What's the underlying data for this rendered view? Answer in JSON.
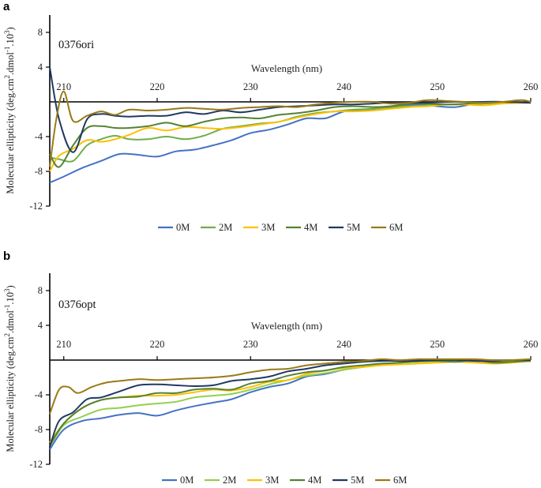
{
  "chart_data": [
    {
      "type": "line",
      "panel_label": "a",
      "sample_label": "0376ori",
      "xlabel": "Wavelength (nm)",
      "ylabel": "Molecular ellipticity (deg.cm",
      "ylabel_sup1": "2",
      "ylabel_mid": ".dmol",
      "ylabel_sup2": "-1",
      "ylabel_mid2": ".10",
      "ylabel_sup3": "3",
      "ylabel_end": ")",
      "xlim": [
        208.5,
        260
      ],
      "ylim": [
        -12,
        10
      ],
      "xticks": [
        210,
        220,
        230,
        240,
        250,
        260
      ],
      "xtick_labels": [
        "210",
        "220",
        "230",
        "240",
        "250",
        "260"
      ],
      "yticks": [
        8,
        4,
        -4,
        -8,
        -12
      ],
      "ytick_labels": [
        "8",
        "4",
        "-4",
        "-8",
        "-12"
      ],
      "legend_position": "bottom",
      "series": [
        {
          "name": "0M",
          "color": "#4472c4",
          "x": [
            208.5,
            210,
            212,
            214,
            216,
            218,
            220,
            222,
            224,
            226,
            228,
            230,
            232,
            234,
            236,
            238,
            240,
            242,
            244,
            246,
            248,
            250,
            252,
            254,
            256,
            258,
            260
          ],
          "y": [
            -9.3,
            -8.6,
            -7.6,
            -6.8,
            -6.0,
            -6.1,
            -6.3,
            -5.7,
            -5.5,
            -5.0,
            -4.4,
            -3.6,
            -3.2,
            -2.6,
            -1.9,
            -1.9,
            -1.1,
            -1.0,
            -0.9,
            -0.5,
            -0.3,
            -0.5,
            -0.6,
            -0.2,
            -0.1,
            -0.1,
            -0.1
          ]
        },
        {
          "name": "2M",
          "color": "#70ad47",
          "x": [
            208.5,
            209.5,
            211,
            212.5,
            214,
            215.5,
            217,
            219,
            221,
            223,
            225,
            227,
            229,
            231,
            233,
            235,
            237,
            239,
            241,
            243,
            245,
            247,
            249,
            251,
            253,
            255,
            257,
            260
          ],
          "y": [
            -6.4,
            -6.6,
            -6.8,
            -5.0,
            -4.3,
            -3.9,
            -4.3,
            -4.3,
            -4.0,
            -4.3,
            -3.9,
            -3.1,
            -2.8,
            -2.5,
            -2.3,
            -1.7,
            -1.3,
            -1.1,
            -0.9,
            -0.8,
            -0.6,
            -0.5,
            -0.4,
            -0.3,
            -0.3,
            -0.2,
            -0.1,
            -0.1
          ]
        },
        {
          "name": "3M",
          "color": "#ffc000",
          "x": [
            208.5,
            209.5,
            211,
            212.5,
            214,
            215.5,
            217,
            219,
            221,
            223,
            225,
            227,
            229,
            231,
            233,
            235,
            237,
            239,
            241,
            243,
            245,
            247,
            249,
            251,
            253,
            255,
            257,
            260
          ],
          "y": [
            -8.0,
            -6.2,
            -5.4,
            -4.4,
            -4.6,
            -4.3,
            -3.8,
            -3.0,
            -3.3,
            -2.9,
            -3.0,
            -3.1,
            -2.9,
            -2.6,
            -2.3,
            -1.8,
            -1.4,
            -1.1,
            -1.1,
            -1.0,
            -0.8,
            -0.6,
            -0.5,
            -0.3,
            -0.3,
            -0.4,
            -0.2,
            -0.1
          ]
        },
        {
          "name": "4M",
          "color": "#548235",
          "x": [
            208.5,
            209.5,
            211,
            212.5,
            214,
            215.5,
            217,
            219,
            221,
            223,
            225,
            227,
            229,
            231,
            233,
            235,
            237,
            239,
            241,
            243,
            245,
            247,
            249,
            251,
            253,
            255,
            257,
            260
          ],
          "y": [
            -6.0,
            -7.5,
            -5.0,
            -3.0,
            -2.8,
            -3.0,
            -3.0,
            -2.8,
            -2.4,
            -2.8,
            -2.3,
            -1.9,
            -1.8,
            -1.9,
            -1.5,
            -1.3,
            -1.0,
            -0.6,
            -0.5,
            -0.6,
            -0.5,
            -0.2,
            -0.2,
            -0.3,
            -0.2,
            0.0,
            0.0,
            -0.1
          ]
        },
        {
          "name": "5M",
          "color": "#203864",
          "x": [
            208.5,
            209.5,
            211,
            212.5,
            214,
            215.5,
            217,
            219,
            221,
            223,
            225,
            227,
            229,
            231,
            233,
            235,
            237,
            239,
            241,
            243,
            245,
            247,
            249,
            251,
            253,
            255,
            257,
            260
          ],
          "y": [
            4.0,
            -2.0,
            -5.8,
            -2.0,
            -1.4,
            -1.6,
            -1.7,
            -1.6,
            -1.6,
            -1.2,
            -1.4,
            -1.0,
            -1.2,
            -0.9,
            -0.6,
            -0.5,
            -0.4,
            -0.3,
            -0.3,
            -0.2,
            -0.1,
            -0.1,
            -0.1,
            0.0,
            0.0,
            0.0,
            0.0,
            -0.1
          ]
        },
        {
          "name": "6M",
          "color": "#9a7a17",
          "x": [
            208.5,
            209.2,
            210,
            211,
            212.5,
            214,
            215.5,
            217,
            219,
            221,
            223,
            225,
            227,
            229,
            231,
            233,
            235,
            237,
            239,
            241,
            243,
            245,
            247,
            249,
            251,
            253,
            255,
            257,
            259,
            260
          ],
          "y": [
            -7.5,
            -2.0,
            1.2,
            -2.2,
            -1.6,
            -1.1,
            -1.5,
            -0.9,
            -1.0,
            -0.9,
            -0.7,
            -0.8,
            -0.9,
            -0.7,
            -0.6,
            -0.5,
            -0.6,
            -0.3,
            -0.1,
            0.0,
            0.0,
            -0.2,
            -0.1,
            0.2,
            0.1,
            0.0,
            -0.1,
            0.0,
            0.2,
            0.0
          ]
        }
      ]
    },
    {
      "type": "line",
      "panel_label": "b",
      "sample_label": "0376opt",
      "xlabel": "Wavelength (nm)",
      "ylabel": "Molecular ellipticity (deg.cm",
      "ylabel_sup1": "2",
      "ylabel_mid": ".dmol",
      "ylabel_sup2": "-1",
      "ylabel_mid2": ".10",
      "ylabel_sup3": "3",
      "ylabel_end": ")",
      "xlim": [
        208.5,
        260
      ],
      "ylim": [
        -12,
        10
      ],
      "xticks": [
        210,
        220,
        230,
        240,
        250,
        260
      ],
      "xtick_labels": [
        "210",
        "220",
        "230",
        "240",
        "250",
        "260"
      ],
      "yticks": [
        8,
        4,
        -4,
        -8,
        -12
      ],
      "ytick_labels": [
        "8",
        "4",
        "-4",
        "-8",
        "-12"
      ],
      "legend_position": "bottom",
      "series": [
        {
          "name": "0M",
          "color": "#4472c4",
          "x": [
            208.5,
            210,
            212,
            214,
            216,
            218,
            220,
            222,
            224,
            226,
            228,
            230,
            232,
            234,
            236,
            238,
            240,
            242,
            244,
            246,
            248,
            250,
            252,
            254,
            256,
            258,
            260
          ],
          "y": [
            -10.3,
            -8.0,
            -7.0,
            -6.7,
            -6.3,
            -6.1,
            -6.4,
            -5.8,
            -5.3,
            -4.9,
            -4.5,
            -3.7,
            -3.1,
            -2.7,
            -1.9,
            -1.6,
            -1.1,
            -0.8,
            -0.5,
            -0.3,
            -0.2,
            -0.2,
            -0.1,
            -0.1,
            -0.2,
            -0.1,
            -0.1
          ]
        },
        {
          "name": "2M",
          "color": "#92d050",
          "x": [
            208.5,
            210,
            212,
            214,
            216,
            218,
            220,
            222,
            224,
            226,
            228,
            230,
            232,
            234,
            236,
            238,
            240,
            242,
            244,
            246,
            248,
            250,
            252,
            254,
            256,
            258,
            260
          ],
          "y": [
            -10.0,
            -7.5,
            -6.5,
            -5.7,
            -5.5,
            -5.2,
            -5.0,
            -4.8,
            -4.3,
            -4.1,
            -3.9,
            -3.4,
            -2.8,
            -2.3,
            -1.8,
            -1.5,
            -1.1,
            -0.8,
            -0.5,
            -0.3,
            -0.2,
            -0.2,
            -0.1,
            -0.1,
            -0.1,
            -0.1,
            -0.1
          ]
        },
        {
          "name": "3M",
          "color": "#ffc000",
          "x": [
            208.5,
            210,
            212,
            214,
            216,
            218,
            220,
            222,
            224,
            226,
            228,
            230,
            232,
            234,
            236,
            238,
            240,
            242,
            244,
            246,
            248,
            250,
            252,
            254,
            256,
            258,
            260
          ],
          "y": [
            -9.5,
            -7.3,
            -5.5,
            -4.6,
            -4.3,
            -4.1,
            -4.1,
            -4.0,
            -3.7,
            -3.4,
            -3.5,
            -3.1,
            -2.5,
            -2.3,
            -1.6,
            -1.2,
            -0.9,
            -0.8,
            -0.6,
            -0.5,
            -0.4,
            -0.3,
            -0.2,
            -0.3,
            -0.4,
            -0.3,
            -0.1
          ]
        },
        {
          "name": "4M",
          "color": "#548235",
          "x": [
            208.5,
            210,
            212,
            214,
            216,
            218,
            220,
            222,
            224,
            226,
            228,
            230,
            232,
            234,
            236,
            238,
            240,
            242,
            244,
            246,
            248,
            250,
            252,
            254,
            256,
            258,
            260
          ],
          "y": [
            -9.8,
            -7.3,
            -5.5,
            -4.6,
            -4.3,
            -4.2,
            -3.8,
            -3.8,
            -3.4,
            -3.3,
            -3.4,
            -2.7,
            -2.4,
            -1.8,
            -1.4,
            -1.2,
            -0.8,
            -0.6,
            -0.4,
            -0.3,
            -0.1,
            -0.1,
            -0.2,
            0.0,
            -0.3,
            -0.2,
            -0.1
          ]
        },
        {
          "name": "5M",
          "color": "#203864",
          "x": [
            208.5,
            209.5,
            211,
            212.5,
            214,
            216,
            218,
            220,
            222,
            224,
            226,
            228,
            230,
            232,
            234,
            236,
            238,
            240,
            242,
            244,
            246,
            248,
            250,
            252,
            254,
            256,
            258,
            260
          ],
          "y": [
            -10.0,
            -7.0,
            -6.0,
            -4.5,
            -4.3,
            -3.6,
            -2.9,
            -2.8,
            -2.9,
            -3.0,
            -2.9,
            -2.4,
            -2.2,
            -1.9,
            -1.3,
            -1.0,
            -0.6,
            -0.4,
            -0.2,
            -0.1,
            -0.1,
            -0.1,
            0.0,
            0.0,
            -0.1,
            -0.1,
            0.0,
            0.0
          ]
        },
        {
          "name": "6M",
          "color": "#9a7a17",
          "x": [
            208.5,
            209.5,
            210.5,
            211.5,
            213,
            214.5,
            216,
            218,
            220,
            222,
            224,
            226,
            228,
            230,
            232,
            234,
            236,
            238,
            240,
            242,
            244,
            246,
            248,
            250,
            252,
            254,
            256,
            258,
            260
          ],
          "y": [
            -6.2,
            -3.4,
            -3.1,
            -3.8,
            -3.1,
            -2.6,
            -2.4,
            -2.2,
            -2.3,
            -2.2,
            -2.1,
            -2.0,
            -1.8,
            -1.4,
            -1.1,
            -1.0,
            -0.6,
            -0.4,
            -0.2,
            -0.1,
            0.1,
            0.0,
            0.1,
            0.1,
            0.1,
            0.1,
            0.0,
            0.0,
            0.1
          ]
        }
      ]
    }
  ]
}
